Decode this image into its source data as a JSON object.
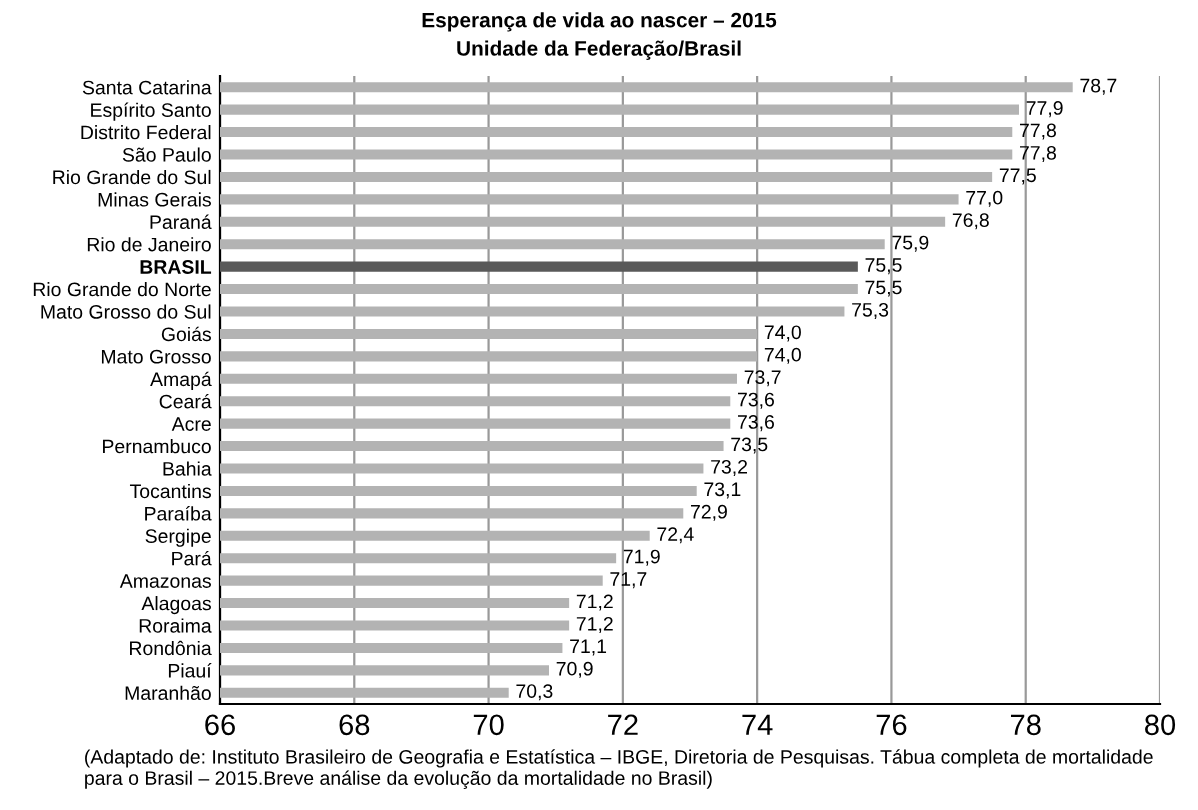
{
  "chart_data": {
    "type": "bar",
    "orientation": "horizontal",
    "title": "Esperança de vida ao nascer – 2015",
    "subtitle": "Unidade da Federação/Brasil",
    "categories": [
      "Santa Catarina",
      "Espírito Santo",
      "Distrito Federal",
      "São Paulo",
      "Rio Grande do Sul",
      "Minas Gerais",
      "Paraná",
      "Rio de Janeiro",
      "BRASIL",
      "Rio Grande do Norte",
      "Mato Grosso do Sul",
      "Goiás",
      "Mato Grosso",
      "Amapá",
      "Ceará",
      "Acre",
      "Pernambuco",
      "Bahia",
      "Tocantins",
      "Paraíba",
      "Sergipe",
      "Pará",
      "Amazonas",
      "Alagoas",
      "Roraima",
      "Rondônia",
      "Piauí",
      "Maranhão"
    ],
    "values": [
      78.7,
      77.9,
      77.8,
      77.8,
      77.5,
      77.0,
      76.8,
      75.9,
      75.5,
      75.5,
      75.3,
      74.0,
      74.0,
      73.7,
      73.6,
      73.6,
      73.5,
      73.2,
      73.1,
      72.9,
      72.4,
      71.9,
      71.7,
      71.2,
      71.2,
      71.1,
      70.9,
      70.3
    ],
    "value_labels": [
      "78,7",
      "77,9",
      "77,8",
      "77,8",
      "77,5",
      "77,0",
      "76,8",
      "75,9",
      "75,5",
      "75,5",
      "75,3",
      "74,0",
      "74,0",
      "73,7",
      "73,6",
      "73,6",
      "73,5",
      "73,2",
      "73,1",
      "72,9",
      "72,4",
      "71,9",
      "71,7",
      "71,2",
      "71,2",
      "71,1",
      "70,9",
      "70,3"
    ],
    "colors": [
      "#b3b3b3",
      "#b3b3b3",
      "#b3b3b3",
      "#b3b3b3",
      "#b3b3b3",
      "#b3b3b3",
      "#b3b3b3",
      "#b3b3b3",
      "#595959",
      "#b3b3b3",
      "#b3b3b3",
      "#b3b3b3",
      "#b3b3b3",
      "#b3b3b3",
      "#b3b3b3",
      "#b3b3b3",
      "#b3b3b3",
      "#b3b3b3",
      "#b3b3b3",
      "#b3b3b3",
      "#b3b3b3",
      "#b3b3b3",
      "#b3b3b3",
      "#b3b3b3",
      "#b3b3b3",
      "#b3b3b3",
      "#b3b3b3",
      "#b3b3b3"
    ],
    "xlim": [
      66,
      80
    ],
    "xticks": [
      66,
      68,
      70,
      72,
      74,
      76,
      78,
      80
    ],
    "grid": "x",
    "annotations": [
      "(Adaptado de: Instituto Brasileiro de Geografia e Estatística – IBGE, Diretoria de Pesquisas. Tábua completa de mortalidade para o Brasil – 2015.Breve análise da evolução da mortalidade no Brasil)"
    ]
  }
}
